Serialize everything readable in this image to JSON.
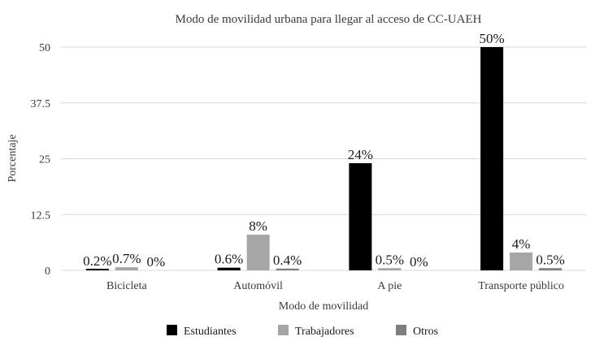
{
  "chart_data": {
    "type": "bar",
    "title": "Modo de movilidad urbana para llegar al acceso de CC-UAEH",
    "xlabel": "Modo de movilidad",
    "ylabel": "Porcentaje",
    "categories": [
      "Bicicleta",
      "Automóvil",
      "A pie",
      "Transporte público"
    ],
    "series": [
      {
        "name": "Estudiantes",
        "color": "#000000",
        "values": [
          0.2,
          0.6,
          24,
          50
        ],
        "labels": [
          "0.2%",
          "0.6%",
          "24%",
          "50%"
        ]
      },
      {
        "name": "Trabajadores",
        "color": "#a6a6a6",
        "values": [
          0.7,
          8,
          0.5,
          4
        ],
        "labels": [
          "0.7%",
          "8%",
          "0.5%",
          "4%"
        ]
      },
      {
        "name": "Otros",
        "color": "#7f7f7f",
        "values": [
          0,
          0.4,
          0,
          0.5
        ],
        "labels": [
          "0%",
          "0.4%",
          "0%",
          "0.5%"
        ]
      }
    ],
    "yticks": [
      "0",
      "12.5",
      "25",
      "37.5",
      "50"
    ],
    "ylim": [
      0,
      50
    ],
    "grid": true,
    "legend_position": "bottom"
  }
}
